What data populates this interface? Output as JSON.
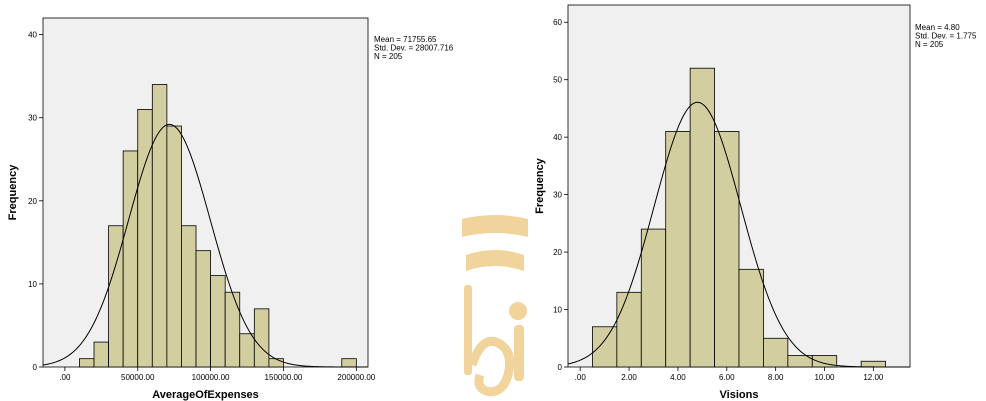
{
  "colors": {
    "plot_bg": "#f0f0f0",
    "bar_fill": "#d3cea0",
    "bar_stroke": "#000000",
    "curve": "#000000",
    "watermark": "#e7b14a"
  },
  "chart_data": [
    {
      "type": "bar",
      "subtype": "histogram-with-normal-curve",
      "xlabel": "AverageOfExpenses",
      "ylabel": "Frequency",
      "xlim": [
        -15000,
        208000
      ],
      "ylim": [
        0,
        42
      ],
      "bin_width": 10000,
      "bin_starts": [
        10000,
        20000,
        30000,
        40000,
        50000,
        60000,
        70000,
        80000,
        90000,
        100000,
        110000,
        120000,
        130000,
        140000,
        190000
      ],
      "values": [
        1,
        3,
        17,
        26,
        31,
        34,
        29,
        17,
        14,
        11,
        9,
        4,
        7,
        1,
        1
      ],
      "x_ticks": [
        0,
        50000,
        100000,
        150000,
        200000
      ],
      "x_tick_labels": [
        ".00",
        "50000.00",
        "100000.00",
        "150000.00",
        "200000.00"
      ],
      "y_ticks": [
        0,
        10,
        20,
        30,
        40
      ],
      "y_tick_labels": [
        "0",
        "10",
        "20",
        "30",
        "40"
      ],
      "normal_curve": {
        "mean": 71755.65,
        "sd": 28007.716,
        "n": 205
      },
      "stats": [
        "Mean = 71755.65",
        "Std. Dev. = 28007.716",
        "N = 205"
      ]
    },
    {
      "type": "bar",
      "subtype": "histogram-with-normal-curve",
      "xlabel": "Visions",
      "ylabel": "Frequency",
      "xlim": [
        -0.5,
        13.5
      ],
      "ylim": [
        0,
        63
      ],
      "bin_width": 1,
      "bin_starts": [
        0.5,
        1.5,
        2.5,
        3.5,
        4.5,
        5.5,
        6.5,
        7.5,
        8.5,
        9.5,
        11.5
      ],
      "values": [
        7,
        13,
        24,
        41,
        52,
        41,
        17,
        5,
        2,
        2,
        1
      ],
      "x_ticks": [
        0,
        2,
        4,
        6,
        8,
        10,
        12
      ],
      "x_tick_labels": [
        ".00",
        "2.00",
        "4.00",
        "6.00",
        "8.00",
        "10.00",
        "12.00"
      ],
      "y_ticks": [
        0,
        10,
        20,
        30,
        40,
        50,
        60
      ],
      "y_tick_labels": [
        "0",
        "10",
        "20",
        "30",
        "40",
        "50",
        "60"
      ],
      "normal_curve": {
        "mean": 4.8,
        "sd": 1.775,
        "n": 205
      },
      "stats": [
        "Mean = 4.80",
        "Std. Dev. = 1.775",
        "N = 205"
      ]
    }
  ]
}
